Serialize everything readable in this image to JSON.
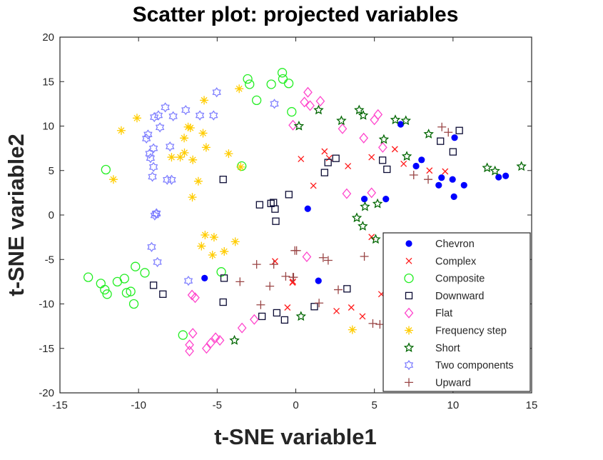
{
  "chart_data": {
    "type": "scatter",
    "title": "Scatter plot: projected variables",
    "xlabel": "t-SNE variable1",
    "ylabel": "t-SNE variable2",
    "xlim": [
      -15,
      15
    ],
    "ylim": [
      -20,
      20
    ],
    "xticks": [
      -15,
      -10,
      -5,
      0,
      5,
      10,
      15
    ],
    "yticks": [
      -20,
      -15,
      -10,
      -5,
      0,
      5,
      10,
      15,
      20
    ],
    "grid": false,
    "legend_position": "bottom-right",
    "series": [
      {
        "name": "Chevron",
        "marker": "filled-circle",
        "color": "#0000ff",
        "points": [
          [
            6.67,
            10.2
          ],
          [
            10.1,
            8.7
          ],
          [
            8.0,
            6.2
          ],
          [
            7.65,
            5.5
          ],
          [
            9.27,
            4.2
          ],
          [
            9.97,
            4.0
          ],
          [
            9.09,
            3.35
          ],
          [
            10.7,
            3.35
          ],
          [
            10.06,
            2.06
          ],
          [
            12.9,
            4.26
          ],
          [
            13.35,
            4.4
          ],
          [
            4.36,
            1.8
          ],
          [
            5.73,
            1.8
          ],
          [
            0.76,
            0.7
          ],
          [
            9.18,
            -4.2
          ],
          [
            10.08,
            -4.5
          ],
          [
            9.59,
            -5.84
          ],
          [
            7.64,
            -7.8
          ],
          [
            8.65,
            -8.0
          ],
          [
            8.92,
            -8.5
          ],
          [
            9.68,
            -7.5
          ],
          [
            9.97,
            -8.9
          ],
          [
            9.64,
            -12.2
          ],
          [
            1.44,
            -7.4
          ],
          [
            -5.8,
            -7.1
          ]
        ]
      },
      {
        "name": "Complex",
        "marker": "x",
        "color": "#ff1a1a",
        "points": [
          [
            0.33,
            6.3
          ],
          [
            1.83,
            7.15
          ],
          [
            2.12,
            6.4
          ],
          [
            3.32,
            5.5
          ],
          [
            1.12,
            3.3
          ],
          [
            4.82,
            6.5
          ],
          [
            6.3,
            7.4
          ],
          [
            6.86,
            5.76
          ],
          [
            8.5,
            5.0
          ],
          [
            9.5,
            4.9
          ],
          [
            4.82,
            -2.47
          ],
          [
            9.36,
            -5.3
          ],
          [
            6.36,
            -6.75
          ],
          [
            6.7,
            -6.4
          ],
          [
            6.86,
            -8.4
          ],
          [
            5.44,
            -8.9
          ],
          [
            5.88,
            -9.3
          ],
          [
            8.12,
            -9.0
          ],
          [
            2.59,
            -10.8
          ],
          [
            3.53,
            -10.4
          ],
          [
            4.24,
            -11.4
          ],
          [
            8.5,
            -11.9
          ],
          [
            -0.18,
            -7.5
          ],
          [
            -1.32,
            -5.2
          ],
          [
            -0.21,
            -7.6
          ],
          [
            -0.53,
            -10.4
          ]
        ]
      },
      {
        "name": "Composite",
        "marker": "open-circle",
        "color": "#22ee22",
        "points": [
          [
            -3.06,
            15.3
          ],
          [
            -2.94,
            14.7
          ],
          [
            -2.49,
            12.9
          ],
          [
            -1.56,
            14.7
          ],
          [
            -0.86,
            16.0
          ],
          [
            -0.82,
            15.3
          ],
          [
            -0.45,
            14.8
          ],
          [
            -0.26,
            11.6
          ],
          [
            -12.08,
            5.1
          ],
          [
            -3.44,
            5.5
          ],
          [
            -13.2,
            -7.0
          ],
          [
            -12.4,
            -7.7
          ],
          [
            -12.15,
            -8.4
          ],
          [
            -12.0,
            -8.9
          ],
          [
            -11.35,
            -7.5
          ],
          [
            -10.9,
            -7.15
          ],
          [
            -10.76,
            -8.75
          ],
          [
            -10.5,
            -8.6
          ],
          [
            -10.3,
            -10.0
          ],
          [
            -10.2,
            -5.8
          ],
          [
            -9.6,
            -6.5
          ],
          [
            -4.74,
            -6.4
          ],
          [
            -7.18,
            -13.5
          ]
        ]
      },
      {
        "name": "Downward",
        "marker": "square",
        "color": "#0a0a33",
        "points": [
          [
            -4.62,
            4.0
          ],
          [
            -2.3,
            1.15
          ],
          [
            -1.58,
            1.3
          ],
          [
            -1.42,
            1.4
          ],
          [
            -1.32,
            0.67
          ],
          [
            -0.44,
            2.3
          ],
          [
            -1.27,
            -0.7
          ],
          [
            -9.05,
            -7.9
          ],
          [
            -8.45,
            -8.9
          ],
          [
            -4.56,
            -7.1
          ],
          [
            -4.62,
            -9.8
          ],
          [
            -2.15,
            -11.4
          ],
          [
            -1.21,
            -11.0
          ],
          [
            -0.71,
            -11.8
          ],
          [
            2.55,
            6.37
          ],
          [
            2.05,
            5.9
          ],
          [
            1.83,
            4.77
          ],
          [
            5.52,
            6.16
          ],
          [
            5.8,
            5.14
          ],
          [
            9.2,
            8.3
          ],
          [
            10.4,
            9.5
          ],
          [
            10.0,
            7.1
          ],
          [
            7.86,
            -6.1
          ],
          [
            3.26,
            -8.3
          ],
          [
            1.18,
            -10.3
          ]
        ]
      },
      {
        "name": "Flat",
        "marker": "diamond",
        "color": "#ff44cc",
        "points": [
          [
            0.77,
            13.8
          ],
          [
            0.55,
            12.7
          ],
          [
            0.91,
            12.3
          ],
          [
            1.56,
            12.8
          ],
          [
            -0.18,
            10.1
          ],
          [
            2.97,
            9.7
          ],
          [
            5.0,
            10.7
          ],
          [
            5.23,
            11.3
          ],
          [
            4.32,
            8.65
          ],
          [
            5.53,
            7.6
          ],
          [
            3.24,
            2.4
          ],
          [
            4.82,
            2.5
          ],
          [
            0.7,
            -4.7
          ],
          [
            8.92,
            -12.7
          ],
          [
            -6.6,
            -9.0
          ],
          [
            -6.4,
            -9.3
          ],
          [
            -6.55,
            -13.3
          ],
          [
            -6.76,
            -14.6
          ],
          [
            -6.76,
            -15.3
          ],
          [
            -5.68,
            -15.0
          ],
          [
            -5.41,
            -14.4
          ],
          [
            -5.1,
            -13.8
          ],
          [
            -4.83,
            -14.1
          ],
          [
            -3.42,
            -12.7
          ],
          [
            -2.64,
            -11.75
          ]
        ]
      },
      {
        "name": "Frequency step",
        "marker": "asterisk",
        "color": "#ffcc00",
        "points": [
          [
            -3.6,
            14.2
          ],
          [
            -5.83,
            12.9
          ],
          [
            -10.1,
            10.9
          ],
          [
            -11.1,
            9.5
          ],
          [
            -6.85,
            9.9
          ],
          [
            -6.7,
            9.8
          ],
          [
            -5.9,
            9.2
          ],
          [
            -7.1,
            8.65
          ],
          [
            -5.7,
            7.6
          ],
          [
            -4.27,
            6.9
          ],
          [
            -7.9,
            6.5
          ],
          [
            -7.35,
            6.5
          ],
          [
            -7.08,
            7.0
          ],
          [
            -6.55,
            6.2
          ],
          [
            -3.5,
            5.4
          ],
          [
            -11.6,
            4.0
          ],
          [
            -6.2,
            3.8
          ],
          [
            -6.58,
            2.0
          ],
          [
            -5.77,
            -2.25
          ],
          [
            -5.2,
            -2.5
          ],
          [
            -6.0,
            -3.5
          ],
          [
            -3.85,
            -3.0
          ],
          [
            -5.3,
            -4.5
          ],
          [
            -4.55,
            -4.1
          ],
          [
            3.6,
            -12.9
          ]
        ]
      },
      {
        "name": "Short",
        "marker": "pentagram",
        "color": "#006600",
        "points": [
          [
            1.45,
            11.8
          ],
          [
            0.2,
            10.0
          ],
          [
            2.9,
            10.6
          ],
          [
            4.03,
            11.8
          ],
          [
            4.29,
            11.2
          ],
          [
            6.33,
            10.7
          ],
          [
            7.0,
            10.6
          ],
          [
            5.6,
            8.5
          ],
          [
            8.45,
            9.1
          ],
          [
            7.06,
            6.6
          ],
          [
            12.17,
            5.3
          ],
          [
            12.67,
            4.95
          ],
          [
            14.35,
            5.46
          ],
          [
            4.4,
            0.94
          ],
          [
            5.2,
            1.26
          ],
          [
            3.88,
            -0.32
          ],
          [
            4.26,
            -1.26
          ],
          [
            5.08,
            -2.73
          ],
          [
            10.5,
            -4.0
          ],
          [
            6.06,
            -7.8
          ],
          [
            11.36,
            -8.0
          ],
          [
            8.92,
            -9.6
          ],
          [
            0.33,
            -11.4
          ],
          [
            -3.9,
            -14.1
          ]
        ]
      },
      {
        "name": "Two components",
        "marker": "hexagram",
        "color": "#8080ff",
        "points": [
          [
            -5.03,
            13.8
          ],
          [
            -1.36,
            12.5
          ],
          [
            -8.3,
            12.1
          ],
          [
            -7.0,
            11.8
          ],
          [
            -6.1,
            11.2
          ],
          [
            -5.23,
            11.2
          ],
          [
            -7.8,
            11.1
          ],
          [
            -9.0,
            11.0
          ],
          [
            -8.74,
            11.2
          ],
          [
            -8.64,
            9.85
          ],
          [
            -9.4,
            9.05
          ],
          [
            -9.5,
            8.6
          ],
          [
            -8.0,
            7.7
          ],
          [
            -9.05,
            7.5
          ],
          [
            -9.3,
            6.9
          ],
          [
            -9.24,
            6.4
          ],
          [
            -9.05,
            5.4
          ],
          [
            -9.12,
            4.3
          ],
          [
            -8.18,
            3.96
          ],
          [
            -7.9,
            3.96
          ],
          [
            -8.86,
            0.2
          ],
          [
            -8.97,
            -0.05
          ],
          [
            -8.88,
            0.13
          ],
          [
            -9.17,
            -3.6
          ],
          [
            -8.8,
            -5.3
          ],
          [
            -6.83,
            -7.4
          ]
        ]
      },
      {
        "name": "Upward",
        "marker": "plus",
        "color": "#994444",
        "points": [
          [
            9.29,
            9.9
          ],
          [
            9.7,
            9.3
          ],
          [
            7.5,
            4.5
          ],
          [
            8.42,
            4.0
          ],
          [
            0.05,
            -4.0
          ],
          [
            1.74,
            -4.8
          ],
          [
            2.06,
            -5.1
          ],
          [
            4.36,
            -4.66
          ],
          [
            -0.14,
            -7.0
          ],
          [
            2.7,
            -8.4
          ],
          [
            1.48,
            -9.9
          ],
          [
            4.9,
            -12.2
          ],
          [
            5.35,
            -12.3
          ],
          [
            6.73,
            -9.4
          ],
          [
            7.27,
            -9.0
          ],
          [
            6.86,
            -10.3
          ],
          [
            7.44,
            -9.8
          ],
          [
            8.2,
            -9.9
          ],
          [
            8.07,
            -12.1
          ],
          [
            -0.06,
            -4.0
          ],
          [
            -2.49,
            -5.55
          ],
          [
            -1.4,
            -5.55
          ],
          [
            -3.55,
            -7.5
          ],
          [
            -1.65,
            -8.0
          ],
          [
            -0.64,
            -6.9
          ],
          [
            -0.18,
            -7.0
          ],
          [
            -2.23,
            -10.1
          ]
        ]
      }
    ]
  }
}
